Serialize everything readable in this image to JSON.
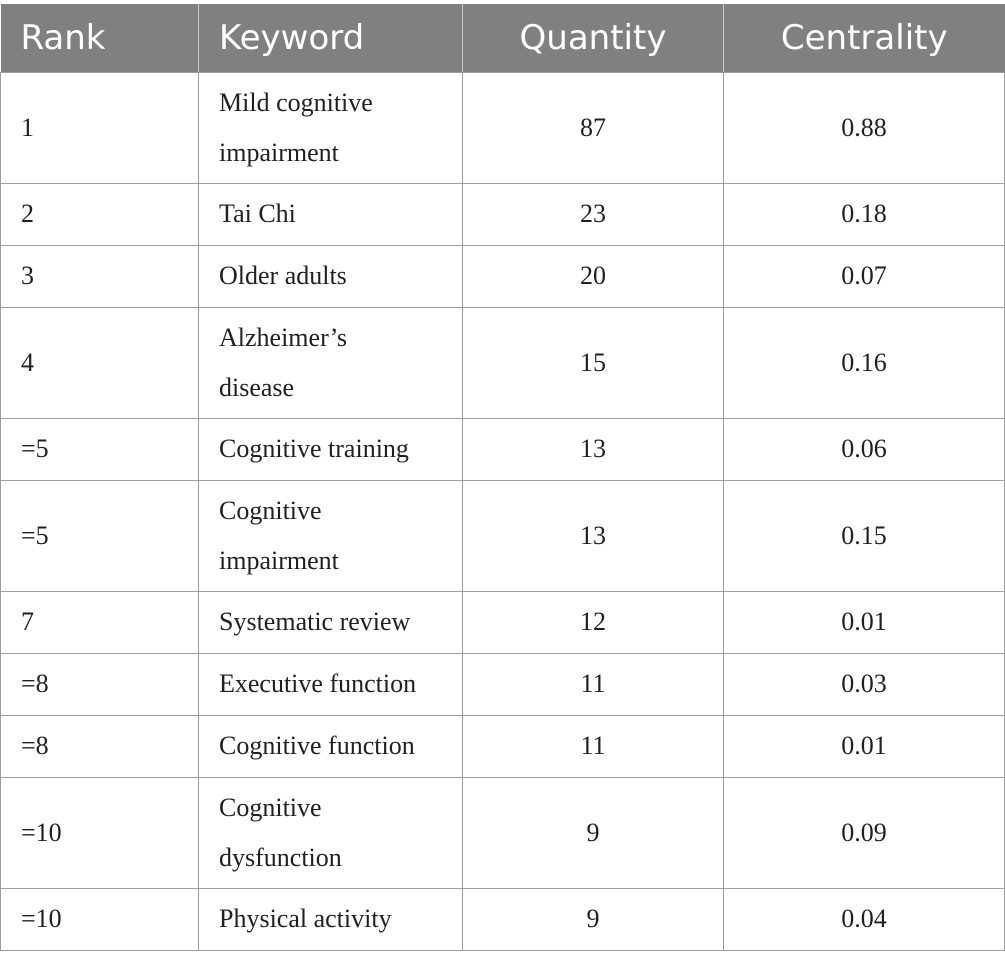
{
  "table": {
    "headers": {
      "rank": "Rank",
      "keyword": "Keyword",
      "quantity": "Quantity",
      "centrality": "Centrality"
    },
    "rows": [
      {
        "rank": "1",
        "keyword_line1": "Mild cognitive",
        "keyword_line2": "impairment",
        "quantity": "87",
        "centrality": "0.88"
      },
      {
        "rank": "2",
        "keyword_line1": "Tai Chi",
        "keyword_line2": "",
        "quantity": "23",
        "centrality": "0.18"
      },
      {
        "rank": "3",
        "keyword_line1": "Older adults",
        "keyword_line2": "",
        "quantity": "20",
        "centrality": "0.07"
      },
      {
        "rank": "4",
        "keyword_line1": "Alzheimer’s",
        "keyword_line2": "disease",
        "quantity": "15",
        "centrality": "0.16"
      },
      {
        "rank": "=5",
        "keyword_line1": "Cognitive training",
        "keyword_line2": "",
        "quantity": "13",
        "centrality": "0.06"
      },
      {
        "rank": "=5",
        "keyword_line1": "Cognitive",
        "keyword_line2": "impairment",
        "quantity": "13",
        "centrality": "0.15"
      },
      {
        "rank": "7",
        "keyword_line1": "Systematic review",
        "keyword_line2": "",
        "quantity": "12",
        "centrality": "0.01"
      },
      {
        "rank": "=8",
        "keyword_line1": "Executive function",
        "keyword_line2": "",
        "quantity": "11",
        "centrality": "0.03"
      },
      {
        "rank": "=8",
        "keyword_line1": "Cognitive function",
        "keyword_line2": "",
        "quantity": "11",
        "centrality": "0.01"
      },
      {
        "rank": "=10",
        "keyword_line1": "Cognitive",
        "keyword_line2": "dysfunction",
        "quantity": "9",
        "centrality": "0.09"
      },
      {
        "rank": "=10",
        "keyword_line1": "Physical activity",
        "keyword_line2": "",
        "quantity": "9",
        "centrality": "0.04"
      }
    ]
  }
}
